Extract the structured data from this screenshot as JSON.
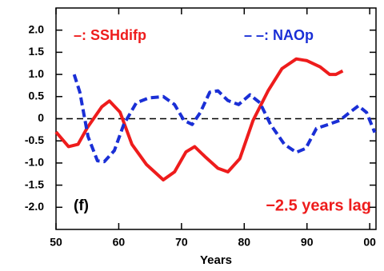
{
  "chart_data": {
    "type": "line",
    "xlabel": "Years",
    "annotations": [
      "(f)",
      "−2.5 years lag"
    ],
    "xlim": [
      50,
      101
    ],
    "ylim": [
      -2.5,
      2.5
    ],
    "xticks": [
      50,
      60,
      70,
      80,
      90,
      {
        "value": 100,
        "label": "00"
      }
    ],
    "yticks": [
      {
        "value": 2,
        "label": "2.0"
      },
      1.5,
      {
        "value": 1,
        "label": "1.0"
      },
      0.5,
      0,
      -0.5,
      {
        "value": -1,
        "label": "-1.0"
      },
      -1.5,
      {
        "value": -2,
        "label": "-2.0"
      }
    ],
    "reference_line": 0,
    "series": [
      {
        "name": "–: SSHdifp",
        "color": "#ee1c1c",
        "dash": false,
        "x": [
          50,
          52,
          53.5,
          55,
          57.3,
          58.5,
          60.2,
          62.1,
          64.4,
          67.1,
          68.9,
          70.7,
          72.1,
          73.7,
          75.8,
          77.4,
          79.3,
          81.4,
          83.8,
          86,
          88.3,
          90,
          92.1,
          93.6,
          94.6,
          95.7
        ],
        "values": [
          -0.3,
          -0.63,
          -0.58,
          -0.2,
          0.27,
          0.4,
          0.15,
          -0.58,
          -1.03,
          -1.38,
          -1.2,
          -0.75,
          -0.63,
          -0.85,
          -1.12,
          -1.2,
          -0.9,
          -0.04,
          0.63,
          1.13,
          1.35,
          1.31,
          1.17,
          1.0,
          1.0,
          1.08
        ]
      },
      {
        "name": "– –: NAOp",
        "color": "#1a2fd6",
        "dash": true,
        "x": [
          52.9,
          53.8,
          55.1,
          56.6,
          57.7,
          59.3,
          60.8,
          62.8,
          64.8,
          67.1,
          68.9,
          70.4,
          71.7,
          73,
          74.5,
          75.8,
          77.4,
          79.1,
          80.9,
          82.5,
          84.2,
          86.4,
          88.3,
          89.8,
          91.5,
          93.4,
          95.2,
          96.8,
          98.2,
          99.5,
          100.8
        ],
        "values": [
          1.0,
          0.6,
          -0.4,
          -0.95,
          -0.97,
          -0.72,
          -0.13,
          0.36,
          0.47,
          0.5,
          0.32,
          -0.04,
          -0.13,
          0.14,
          0.6,
          0.63,
          0.41,
          0.32,
          0.54,
          0.36,
          -0.13,
          -0.58,
          -0.76,
          -0.67,
          -0.22,
          -0.13,
          -0.04,
          0.14,
          0.29,
          0.14,
          -0.31
        ]
      }
    ]
  }
}
